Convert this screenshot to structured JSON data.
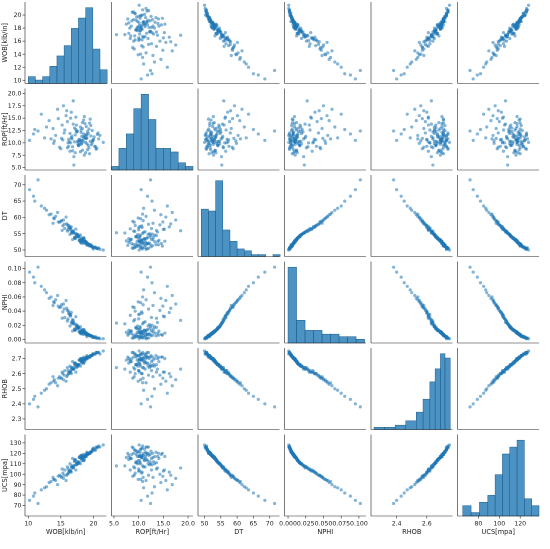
{
  "chart_data": {
    "type": "scatter",
    "layout": "pairplot",
    "variables": [
      {
        "key": "WOB",
        "label": "WOB[klb/in]",
        "range": [
          9.5,
          22.0
        ],
        "ticks": [
          10,
          12,
          14,
          16,
          18,
          20
        ],
        "xticks": [
          10,
          15,
          20
        ]
      },
      {
        "key": "ROP",
        "label": "ROP[ft/Hr]",
        "range": [
          4.5,
          21.0
        ],
        "ticks": [
          5.0,
          7.5,
          10.0,
          12.5,
          15.0,
          17.5,
          20.0
        ],
        "tick_decimals": 1,
        "xticks": [
          5,
          10,
          15,
          20
        ]
      },
      {
        "key": "DT",
        "label": "DT",
        "range": [
          48,
          73
        ],
        "ticks": [
          50,
          55,
          60,
          65,
          70
        ],
        "xticks": [
          50,
          55,
          60,
          65,
          70
        ]
      },
      {
        "key": "NPHI",
        "label": "NPHI",
        "range": [
          -0.005,
          0.11
        ],
        "ticks": [
          0.0,
          0.02,
          0.04,
          0.06,
          0.08,
          0.1
        ],
        "tick_decimals": 2,
        "xticks": [
          0.0,
          0.025,
          0.05,
          0.075,
          0.1
        ],
        "xtick_decimals": 3
      },
      {
        "key": "RHOB",
        "label": "RHOB",
        "range": [
          2.23,
          2.77
        ],
        "ticks": [
          2.3,
          2.4,
          2.5,
          2.6,
          2.7
        ],
        "tick_decimals": 1,
        "xticks": [
          2.4,
          2.6
        ]
      },
      {
        "key": "UCS",
        "label": "UCS[mpa]",
        "range": [
          60,
          138
        ],
        "ticks": [
          70,
          80,
          90,
          100,
          110,
          120,
          130
        ],
        "xticks": [
          80,
          100,
          120
        ]
      }
    ],
    "histograms": {
      "WOB": {
        "edges": [
          10,
          11.1,
          12.2,
          13.3,
          14.4,
          15.5,
          16.6,
          17.7,
          18.8,
          19.9,
          21.0,
          22.1
        ],
        "counts": [
          2,
          1,
          2,
          5,
          8,
          11,
          16,
          19,
          22,
          10,
          4
        ]
      },
      "ROP": {
        "edges": [
          4.5,
          6.0,
          7.5,
          9.0,
          10.5,
          12.0,
          13.5,
          15.0,
          16.5,
          18.0,
          19.5,
          21.0
        ],
        "counts": [
          1,
          6,
          10,
          17,
          21,
          14,
          6,
          6,
          5,
          2,
          1
        ]
      },
      "DT": {
        "edges": [
          49.0,
          51.2,
          53.4,
          55.6,
          57.8,
          60.0,
          62.2,
          64.4,
          66.6,
          68.8,
          71.0,
          73.2
        ],
        "counts": [
          25,
          24,
          40,
          14,
          8,
          4,
          3,
          1,
          1,
          0,
          1
        ]
      },
      "NPHI": {
        "edges": [
          0.0,
          0.012,
          0.024,
          0.036,
          0.048,
          0.06,
          0.072,
          0.084,
          0.096,
          0.108
        ],
        "counts": [
          60,
          18,
          10,
          10,
          7,
          7,
          5,
          5,
          3
        ]
      },
      "RHOB": {
        "edges": [
          2.25,
          2.32,
          2.39,
          2.46,
          2.53,
          2.575,
          2.62,
          2.655,
          2.69,
          2.72,
          2.755
        ],
        "counts": [
          1,
          1,
          2,
          4,
          8,
          14,
          22,
          28,
          35,
          33
        ]
      },
      "UCS": {
        "edges": [
          65,
          73,
          81,
          89,
          96,
          103,
          110,
          117,
          124,
          131,
          138
        ],
        "counts": [
          3,
          1,
          4,
          6,
          12,
          18,
          20,
          22,
          5,
          3
        ]
      }
    },
    "records": [
      [
        18.2,
        10.5,
        52.1,
        0.008,
        2.7,
        118
      ],
      [
        17.5,
        12.3,
        54.0,
        0.015,
        2.66,
        112
      ],
      [
        19.0,
        9.8,
        51.5,
        0.004,
        2.72,
        121
      ],
      [
        16.8,
        8.4,
        53.2,
        0.012,
        2.68,
        115
      ],
      [
        20.1,
        11.2,
        50.8,
        0.003,
        2.73,
        124
      ],
      [
        15.2,
        13.6,
        56.0,
        0.03,
        2.61,
        105
      ],
      [
        18.8,
        10.1,
        52.6,
        0.01,
        2.69,
        117
      ],
      [
        17.0,
        7.2,
        55.2,
        0.022,
        2.63,
        108
      ],
      [
        19.5,
        14.8,
        51.2,
        0.006,
        2.71,
        120
      ],
      [
        16.2,
        9.3,
        57.5,
        0.04,
        2.6,
        101
      ],
      [
        18.5,
        11.8,
        53.8,
        0.014,
        2.67,
        113
      ],
      [
        13.8,
        12.9,
        58.2,
        0.048,
        2.58,
        97
      ],
      [
        20.5,
        8.9,
        50.5,
        0.002,
        2.74,
        125
      ],
      [
        17.8,
        10.7,
        52.9,
        0.011,
        2.69,
        116
      ],
      [
        15.8,
        15.5,
        60.1,
        0.055,
        2.55,
        94
      ],
      [
        19.2,
        9.5,
        51.8,
        0.007,
        2.71,
        119
      ],
      [
        18.0,
        13.2,
        54.6,
        0.018,
        2.65,
        110
      ],
      [
        16.5,
        10.0,
        56.8,
        0.035,
        2.62,
        103
      ],
      [
        21.0,
        11.5,
        50.2,
        0.001,
        2.73,
        126
      ],
      [
        17.2,
        8.0,
        53.5,
        0.013,
        2.67,
        114
      ],
      [
        14.5,
        16.8,
        61.5,
        0.062,
        2.52,
        90
      ],
      [
        18.9,
        10.9,
        52.3,
        0.009,
        2.7,
        118
      ],
      [
        19.8,
        12.5,
        51.0,
        0.005,
        2.72,
        122
      ],
      [
        16.0,
        9.0,
        55.8,
        0.026,
        2.64,
        107
      ],
      [
        18.3,
        14.1,
        53.0,
        0.012,
        2.68,
        115
      ],
      [
        12.5,
        11.0,
        62.8,
        0.07,
        2.49,
        87
      ],
      [
        17.6,
        10.3,
        54.3,
        0.016,
        2.66,
        111
      ],
      [
        19.4,
        7.8,
        51.4,
        0.006,
        2.71,
        120
      ],
      [
        15.5,
        12.0,
        57.9,
        0.043,
        2.59,
        99
      ],
      [
        18.1,
        9.7,
        52.7,
        0.01,
        2.69,
        117
      ],
      [
        20.8,
        10.8,
        50.6,
        0.002,
        2.74,
        127
      ],
      [
        16.9,
        13.8,
        55.5,
        0.024,
        2.63,
        106
      ],
      [
        18.6,
        11.1,
        53.4,
        0.013,
        2.68,
        114
      ],
      [
        14.0,
        10.4,
        59.6,
        0.052,
        2.56,
        95
      ],
      [
        19.1,
        8.6,
        51.9,
        0.008,
        2.7,
        119
      ],
      [
        17.3,
        15.2,
        56.4,
        0.032,
        2.61,
        104
      ],
      [
        18.4,
        10.2,
        52.5,
        0.009,
        2.7,
        118
      ],
      [
        16.4,
        11.9,
        54.8,
        0.019,
        2.65,
        110
      ],
      [
        20.3,
        9.2,
        50.9,
        0.004,
        2.73,
        123
      ],
      [
        11.0,
        12.7,
        65.0,
        0.08,
        2.45,
        82
      ],
      [
        17.9,
        10.6,
        53.1,
        0.011,
        2.69,
        116
      ],
      [
        19.6,
        13.5,
        51.6,
        0.005,
        2.72,
        121
      ],
      [
        15.0,
        8.8,
        58.8,
        0.046,
        2.57,
        98
      ],
      [
        18.7,
        11.4,
        52.4,
        0.01,
        2.7,
        117
      ],
      [
        16.6,
        16.2,
        57.1,
        0.038,
        2.6,
        102
      ],
      [
        18.2,
        9.9,
        53.7,
        0.014,
        2.67,
        113
      ],
      [
        19.9,
        10.4,
        50.7,
        0.003,
        2.73,
        124
      ],
      [
        17.4,
        12.2,
        55.0,
        0.021,
        2.64,
        109
      ],
      [
        13.2,
        14.5,
        60.8,
        0.058,
        2.53,
        92
      ],
      [
        18.0,
        8.2,
        52.8,
        0.01,
        2.69,
        116
      ],
      [
        20.6,
        11.7,
        50.4,
        0.002,
        2.74,
        126
      ],
      [
        16.1,
        10.0,
        56.2,
        0.029,
        2.62,
        105
      ],
      [
        19.3,
        12.8,
        51.3,
        0.006,
        2.71,
        120
      ],
      [
        17.7,
        9.4,
        54.1,
        0.017,
        2.66,
        111
      ],
      [
        15.4,
        17.5,
        59.2,
        0.05,
        2.56,
        96
      ],
      [
        18.8,
        10.9,
        52.2,
        0.008,
        2.7,
        118
      ],
      [
        10.2,
        10.5,
        68.5,
        0.095,
        2.4,
        75
      ],
      [
        17.1,
        13.0,
        53.9,
        0.015,
        2.66,
        112
      ],
      [
        19.7,
        9.6,
        51.1,
        0.005,
        2.72,
        122
      ],
      [
        16.7,
        11.3,
        55.6,
        0.025,
        2.63,
        107
      ],
      [
        18.5,
        14.6,
        52.0,
        0.007,
        2.71,
        119
      ],
      [
        14.8,
        9.1,
        58.5,
        0.045,
        2.58,
        99
      ],
      [
        20.0,
        10.7,
        50.3,
        0.003,
        2.73,
        125
      ],
      [
        17.5,
        12.4,
        54.5,
        0.018,
        2.65,
        110
      ],
      [
        18.3,
        8.5,
        53.3,
        0.012,
        2.68,
        115
      ],
      [
        12.0,
        15.8,
        63.5,
        0.075,
        2.47,
        85
      ],
      [
        19.0,
        11.0,
        51.7,
        0.006,
        2.71,
        120
      ],
      [
        16.3,
        10.2,
        57.2,
        0.036,
        2.61,
        103
      ],
      [
        18.9,
        13.3,
        52.5,
        0.009,
        2.7,
        117
      ],
      [
        17.8,
        9.6,
        54.2,
        0.016,
        2.66,
        111
      ],
      [
        21.5,
        10.1,
        50.0,
        0.001,
        2.75,
        128
      ],
      [
        15.6,
        12.6,
        56.6,
        0.031,
        2.62,
        104
      ],
      [
        18.6,
        7.5,
        52.8,
        0.01,
        2.69,
        116
      ],
      [
        16.9,
        18.5,
        55.9,
        0.027,
        2.63,
        106
      ],
      [
        19.5,
        10.3,
        51.5,
        0.005,
        2.72,
        121
      ],
      [
        17.2,
        11.6,
        53.6,
        0.013,
        2.67,
        114
      ],
      [
        13.5,
        10.8,
        61.0,
        0.06,
        2.54,
        93
      ],
      [
        18.1,
        12.1,
        52.2,
        0.008,
        2.7,
        118
      ],
      [
        20.2,
        9.3,
        50.8,
        0.003,
        2.73,
        123
      ],
      [
        16.0,
        14.3,
        57.7,
        0.041,
        2.59,
        100
      ],
      [
        18.4,
        10.6,
        53.0,
        0.011,
        2.69,
        116
      ],
      [
        17.0,
        5.5,
        55.3,
        0.023,
        2.64,
        108
      ],
      [
        19.2,
        11.9,
        51.9,
        0.007,
        2.71,
        120
      ],
      [
        15.1,
        10.9,
        59.0,
        0.049,
        2.57,
        97
      ],
      [
        18.7,
        13.9,
        52.6,
        0.009,
        2.7,
        117
      ],
      [
        17.6,
        9.8,
        54.7,
        0.019,
        2.65,
        110
      ],
      [
        11.5,
        12.4,
        71.5,
        0.102,
        2.38,
        72
      ],
      [
        19.8,
        10.0,
        51.2,
        0.004,
        2.72,
        122
      ],
      [
        16.5,
        15.0,
        56.3,
        0.033,
        2.61,
        103
      ],
      [
        18.2,
        11.3,
        53.2,
        0.012,
        2.68,
        115
      ],
      [
        20.4,
        8.7,
        50.6,
        0.002,
        2.74,
        126
      ],
      [
        17.3,
        12.7,
        54.9,
        0.02,
        2.65,
        109
      ],
      [
        14.2,
        11.5,
        60.3,
        0.056,
        2.54,
        94
      ],
      [
        18.0,
        10.4,
        52.4,
        0.009,
        2.7,
        117
      ],
      [
        19.4,
        14.0,
        51.6,
        0.006,
        2.71,
        120
      ],
      [
        16.8,
        9.2,
        55.7,
        0.028,
        2.63,
        106
      ],
      [
        18.5,
        11.2,
        53.5,
        0.013,
        2.67,
        113
      ],
      [
        15.9,
        16.5,
        58.0,
        0.044,
        2.58,
        99
      ],
      [
        17.9,
        10.1,
        52.9,
        0.01,
        2.69,
        117
      ],
      [
        19.1,
        12.3,
        51.8,
        0.007,
        2.71,
        119
      ],
      [
        16.2,
        10.7,
        56.9,
        0.037,
        2.6,
        102
      ],
      [
        18.8,
        8.0,
        52.3,
        0.008,
        2.7,
        118
      ],
      [
        10.8,
        11.8,
        66.5,
        0.088,
        2.43,
        79
      ],
      [
        17.4,
        13.6,
        54.4,
        0.017,
        2.66,
        111
      ],
      [
        19.9,
        10.5,
        50.9,
        0.004,
        2.73,
        124
      ],
      [
        16.6,
        11.0,
        55.4,
        0.024,
        2.64,
        107
      ],
      [
        18.3,
        12.9,
        53.1,
        0.011,
        2.69,
        116
      ],
      [
        13.9,
        9.9,
        59.8,
        0.053,
        2.55,
        95
      ],
      [
        19.6,
        11.4,
        51.4,
        0.005,
        2.72,
        121
      ],
      [
        17.1,
        10.2,
        53.8,
        0.014,
        2.67,
        113
      ],
      [
        18.6,
        15.3,
        52.7,
        0.009,
        2.7,
        117
      ],
      [
        15.3,
        10.6,
        57.4,
        0.039,
        2.6,
        101
      ],
      [
        20.7,
        12.0,
        50.5,
        0.002,
        2.74,
        126
      ],
      [
        17.7,
        9.5,
        54.0,
        0.016,
        2.66,
        112
      ],
      [
        18.9,
        11.7,
        52.0,
        0.007,
        2.71,
        119
      ],
      [
        12.8,
        13.2,
        62.2,
        0.066,
        2.5,
        88
      ],
      [
        16.7,
        10.8,
        55.1,
        0.022,
        2.64,
        108
      ],
      [
        19.3,
        9.0,
        51.7,
        0.006,
        2.71,
        120
      ],
      [
        18.1,
        12.6,
        53.3,
        0.012,
        2.68,
        115
      ],
      [
        14.6,
        14.9,
        58.6,
        0.047,
        2.57,
        98
      ],
      [
        17.6,
        10.3,
        54.6,
        0.018,
        2.65,
        110
      ],
      [
        19.0,
        11.6,
        51.9,
        0.007,
        2.71,
        120
      ],
      [
        16.4,
        8.3,
        56.5,
        0.034,
        2.61,
        104
      ]
    ]
  }
}
